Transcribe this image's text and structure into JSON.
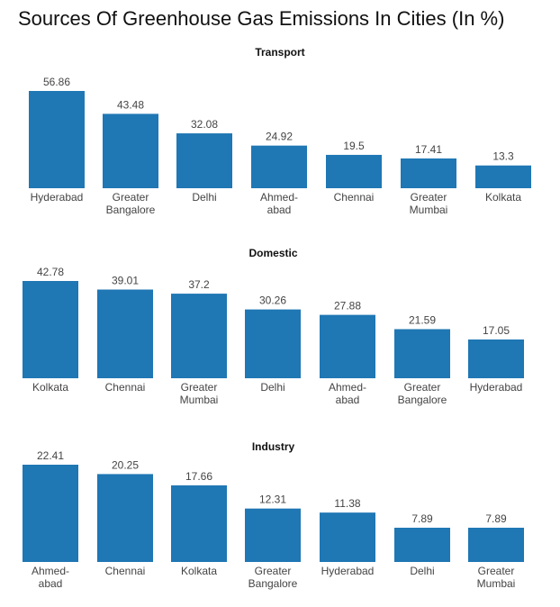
{
  "title": "Sources Of Greenhouse Gas Emissions In Cities (In %)",
  "colors": {
    "bar": "#1f77b4"
  },
  "chart_data": [
    {
      "type": "bar",
      "title": "Transport",
      "categories": [
        [
          "Hyderabad"
        ],
        [
          "Greater",
          "Bangalore"
        ],
        [
          "Delhi"
        ],
        [
          "Ahmed-",
          "abad"
        ],
        [
          "Chennai"
        ],
        [
          "Greater",
          "Mumbai"
        ],
        [
          "Kolkata"
        ]
      ],
      "values": [
        56.86,
        43.48,
        32.08,
        24.92,
        19.5,
        17.41,
        13.3
      ],
      "value_labels": [
        "56.86",
        "43.48",
        "32.08",
        "24.92",
        "19.5",
        "17.41",
        "13.3"
      ],
      "xlabel": "",
      "ylabel": "",
      "ylim": [
        0,
        60
      ],
      "grid": false,
      "legend": "none"
    },
    {
      "type": "bar",
      "title": "Domestic",
      "categories": [
        [
          "Kolkata"
        ],
        [
          "Chennai"
        ],
        [
          "Greater",
          "Mumbai"
        ],
        [
          "Delhi"
        ],
        [
          "Ahmed-",
          "abad"
        ],
        [
          "Greater",
          "Bangalore"
        ],
        [
          "Hyderabad"
        ]
      ],
      "values": [
        42.78,
        39.01,
        37.2,
        30.26,
        27.88,
        21.59,
        17.05
      ],
      "value_labels": [
        "42.78",
        "39.01",
        "37.2",
        "30.26",
        "27.88",
        "21.59",
        "17.05"
      ],
      "xlabel": "",
      "ylabel": "",
      "ylim": [
        0,
        45
      ],
      "grid": false,
      "legend": "none"
    },
    {
      "type": "bar",
      "title": "Industry",
      "categories": [
        [
          "Ahmed-",
          "abad"
        ],
        [
          "Chennai"
        ],
        [
          "Kolkata"
        ],
        [
          "Greater",
          "Bangalore"
        ],
        [
          "Hyderabad"
        ],
        [
          "Delhi"
        ],
        [
          "Greater",
          "Mumbai"
        ]
      ],
      "values": [
        22.41,
        20.25,
        17.66,
        12.31,
        11.38,
        7.89,
        7.89
      ],
      "value_labels": [
        "22.41",
        "20.25",
        "17.66",
        "12.31",
        "11.38",
        "7.89",
        "7.89"
      ],
      "xlabel": "",
      "ylabel": "",
      "ylim": [
        0,
        24
      ],
      "grid": false,
      "legend": "none"
    }
  ]
}
